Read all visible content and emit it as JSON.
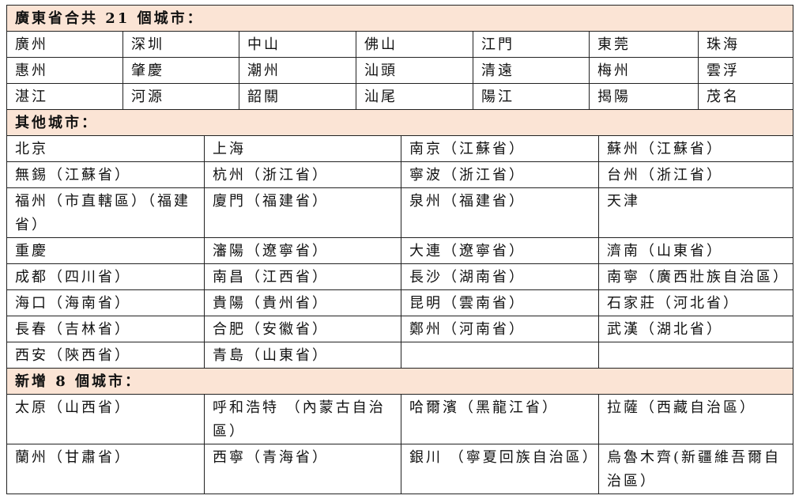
{
  "guangdong": {
    "header": "廣東省合共 21 個城市：",
    "rows": [
      [
        "廣州",
        "深圳",
        "中山",
        "佛山",
        "江門",
        "東莞",
        "珠海"
      ],
      [
        "惠州",
        "肇慶",
        "潮州",
        "汕頭",
        "清遠",
        "梅州",
        "雲浮"
      ],
      [
        "湛江",
        "河源",
        "韶關",
        "汕尾",
        "陽江",
        "揭陽",
        "茂名"
      ]
    ]
  },
  "other": {
    "header": "其他城市：",
    "rows": [
      [
        "北京",
        "上海",
        "南京（江蘇省）",
        "蘇州（江蘇省）"
      ],
      [
        "無錫（江蘇省）",
        "杭州（浙江省）",
        "寧波（浙江省）",
        "台州（浙江省）"
      ],
      [
        "福州（市直轄區）（福建省）",
        "廈門（福建省）",
        "泉州（福建省）",
        "天津"
      ],
      [
        "重慶",
        "瀋陽（遼寧省）",
        "大連（遼寧省）",
        "濟南（山東省）"
      ],
      [
        "成都（四川省）",
        "南昌（江西省）",
        "長沙（湖南省）",
        "南寧（廣西壯族自治區）"
      ],
      [
        "海口（海南省）",
        "貴陽（貴州省）",
        "昆明（雲南省）",
        "石家莊（河北省）"
      ],
      [
        "長春（吉林省）",
        "合肥（安徽省）",
        "鄭州（河南省）",
        "武漢（湖北省）"
      ],
      [
        "西安（陝西省）",
        "青島（山東省）",
        "",
        ""
      ]
    ]
  },
  "new": {
    "header": "新增 8 個城市：",
    "rows": [
      [
        "太原（山西省）",
        "呼和浩特 （內蒙古自治區）",
        "哈爾濱（黑龍江省）",
        "拉薩（西藏自治區）"
      ],
      [
        "蘭州（甘肅省）",
        "西寧（青海省）",
        "銀川 （寧夏回族自治區）",
        "烏魯木齊(新疆維吾爾自治區）"
      ]
    ]
  }
}
